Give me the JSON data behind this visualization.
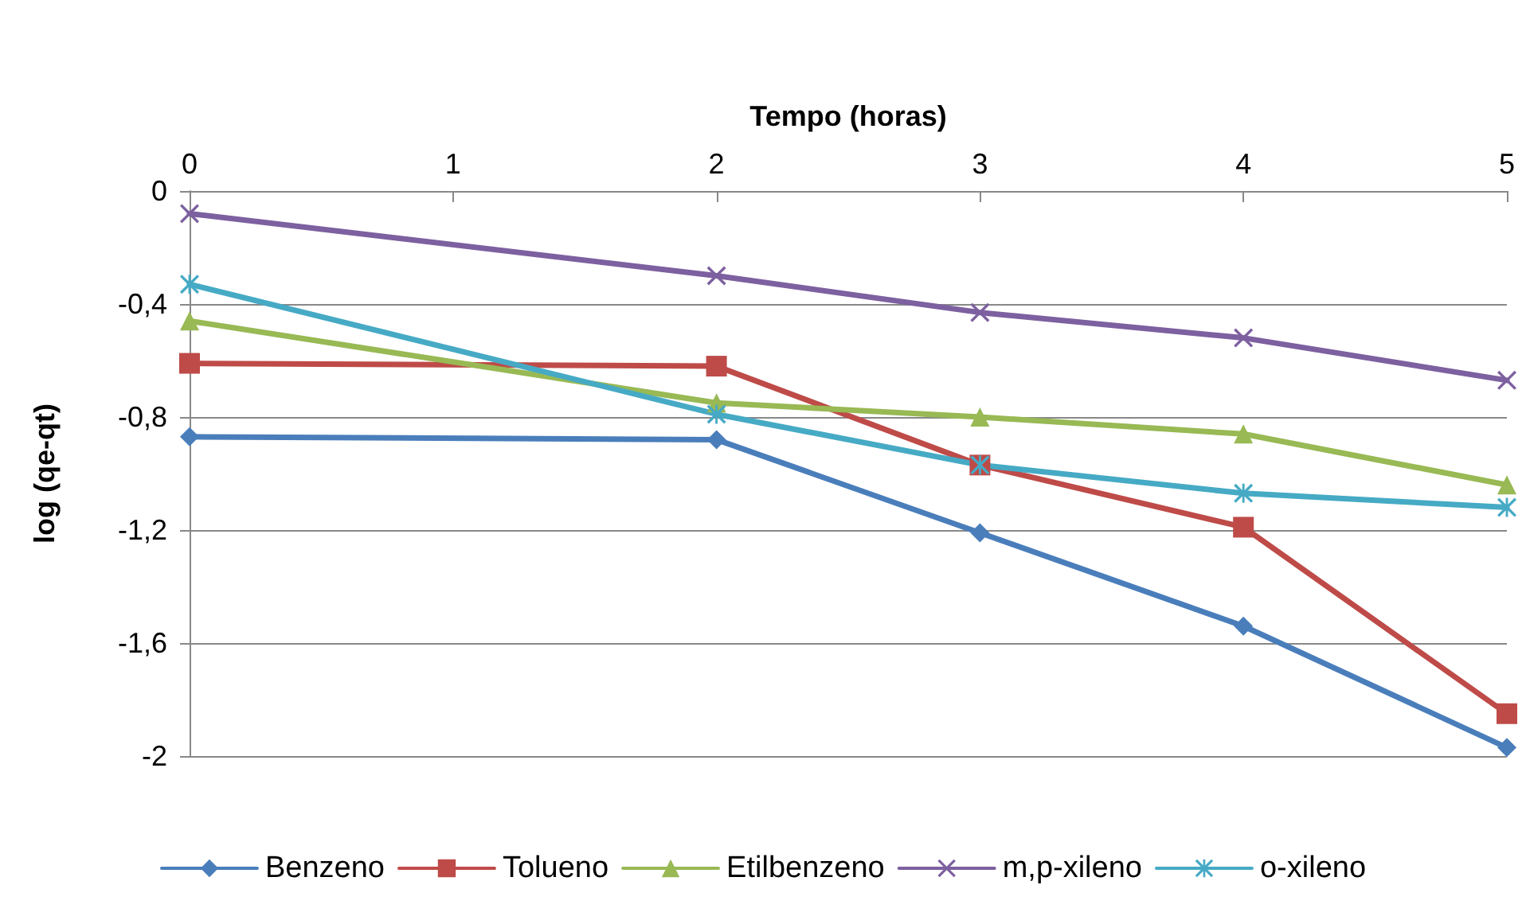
{
  "chart_data": {
    "type": "line",
    "xlabel": "Tempo (horas)",
    "ylabel": "log (qe-qt)",
    "x": [
      0,
      2,
      3,
      4,
      5
    ],
    "xlim": [
      0,
      5
    ],
    "xticks": [
      0,
      1,
      2,
      3,
      4,
      5
    ],
    "ylim": [
      -2,
      0
    ],
    "yticks": [
      {
        "value": 0,
        "label": "0"
      },
      {
        "value": -0.4,
        "label": "-0,4"
      },
      {
        "value": -0.8,
        "label": "-0,8"
      },
      {
        "value": -1.2,
        "label": "-1,2"
      },
      {
        "value": -1.6,
        "label": "-1,6"
      },
      {
        "value": -2,
        "label": "-2"
      }
    ],
    "grid": "y",
    "legend": "bottom",
    "line_style": "solid",
    "series": [
      {
        "name": "Benzeno",
        "color": "#4a7ebb",
        "marker": "diamond",
        "values": [
          -0.87,
          -0.88,
          -1.21,
          -1.54,
          -1.97
        ]
      },
      {
        "name": "Tolueno",
        "color": "#be4b48",
        "marker": "square",
        "values": [
          -0.61,
          -0.62,
          -0.97,
          -1.19,
          -1.85
        ]
      },
      {
        "name": "Etilbenzeno",
        "color": "#98b954",
        "marker": "triangle",
        "values": [
          -0.46,
          -0.75,
          -0.8,
          -0.86,
          -1.04
        ]
      },
      {
        "name": "m,p-xileno",
        "color": "#7d60a0",
        "marker": "cross",
        "values": [
          -0.08,
          -0.3,
          -0.43,
          -0.52,
          -0.67
        ]
      },
      {
        "name": "o-xileno",
        "color": "#46aac5",
        "marker": "star",
        "values": [
          -0.33,
          -0.79,
          -0.97,
          -1.07,
          -1.12
        ]
      }
    ]
  }
}
